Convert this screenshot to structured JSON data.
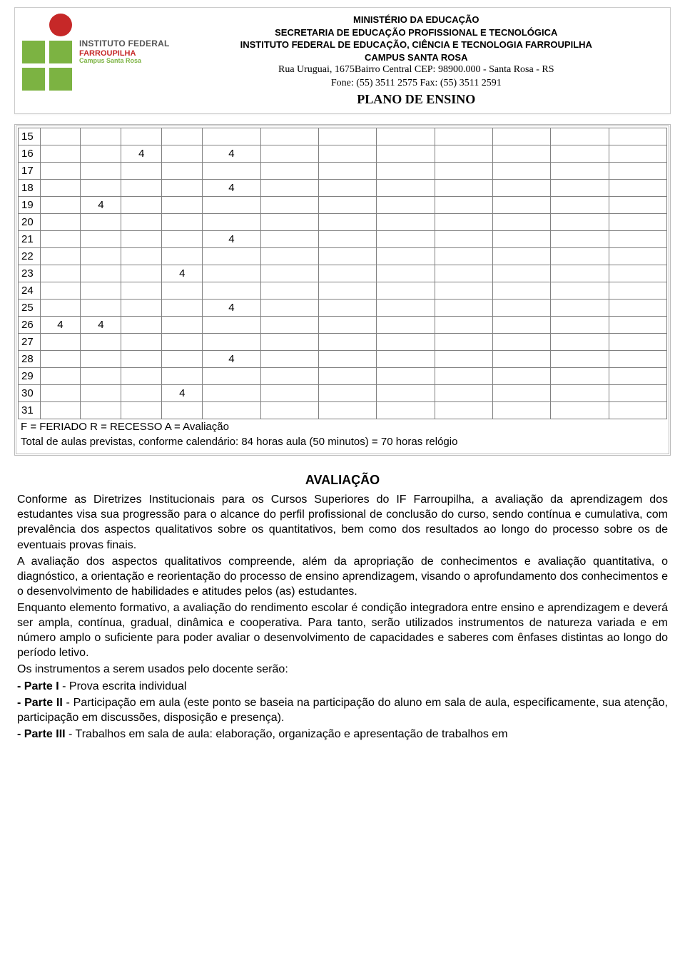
{
  "header": {
    "ministry": "MINISTÉRIO DA EDUCAÇÃO",
    "secretariat": "SECRETARIA DE EDUCAÇÃO PROFISSIONAL E TECNOLÓGICA",
    "institute": "INSTITUTO FEDERAL DE EDUCAÇÃO, CIÊNCIA E TECNOLOGIA FARROUPILHA",
    "campus": "CAMPUS SANTA ROSA",
    "address": "Rua Uruguai, 1675Bairro Central   CEP: 98900.000   - Santa Rosa - RS",
    "contact": "Fone: (55) 3511 2575     Fax: (55) 3511 2591",
    "doc_title": "PLANO DE ENSINO",
    "logo": {
      "line1": "INSTITUTO FEDERAL",
      "line2": "FARROUPILHA",
      "line3": "Campus Santa Rosa",
      "colors": {
        "red": "#c62828",
        "green": "#7cb342"
      }
    }
  },
  "schedule": {
    "type": "table",
    "columns": 13,
    "col_widths": [
      "30px",
      "56px",
      "56px",
      "56px",
      "56px",
      "80px",
      "80px",
      "80px",
      "80px",
      "80px",
      "80px",
      "80px",
      "80px"
    ],
    "rows": [
      {
        "day": "15",
        "cells": [
          "",
          "",
          "",
          "",
          "",
          "",
          "",
          "",
          "",
          "",
          "",
          ""
        ]
      },
      {
        "day": "16",
        "cells": [
          "",
          "",
          "4",
          "",
          "4",
          "",
          "",
          "",
          "",
          "",
          "",
          ""
        ]
      },
      {
        "day": "17",
        "cells": [
          "",
          "",
          "",
          "",
          "",
          "",
          "",
          "",
          "",
          "",
          "",
          ""
        ]
      },
      {
        "day": "18",
        "cells": [
          "",
          "",
          "",
          "",
          "4",
          "",
          "",
          "",
          "",
          "",
          "",
          ""
        ]
      },
      {
        "day": "19",
        "cells": [
          "",
          "4",
          "",
          "",
          "",
          "",
          "",
          "",
          "",
          "",
          "",
          ""
        ]
      },
      {
        "day": "20",
        "cells": [
          "",
          "",
          "",
          "",
          "",
          "",
          "",
          "",
          "",
          "",
          "",
          ""
        ]
      },
      {
        "day": "21",
        "cells": [
          "",
          "",
          "",
          "",
          "4",
          "",
          "",
          "",
          "",
          "",
          "",
          ""
        ]
      },
      {
        "day": "22",
        "cells": [
          "",
          "",
          "",
          "",
          "",
          "",
          "",
          "",
          "",
          "",
          "",
          ""
        ]
      },
      {
        "day": "23",
        "cells": [
          "",
          "",
          "",
          "4",
          "",
          "",
          "",
          "",
          "",
          "",
          "",
          ""
        ]
      },
      {
        "day": "24",
        "cells": [
          "",
          "",
          "",
          "",
          "",
          "",
          "",
          "",
          "",
          "",
          "",
          ""
        ]
      },
      {
        "day": "25",
        "cells": [
          "",
          "",
          "",
          "",
          "4",
          "",
          "",
          "",
          "",
          "",
          "",
          ""
        ]
      },
      {
        "day": "26",
        "cells": [
          "4",
          "4",
          "",
          "",
          "",
          "",
          "",
          "",
          "",
          "",
          "",
          ""
        ]
      },
      {
        "day": "27",
        "cells": [
          "",
          "",
          "",
          "",
          "",
          "",
          "",
          "",
          "",
          "",
          "",
          ""
        ]
      },
      {
        "day": "28",
        "cells": [
          "",
          "",
          "",
          "",
          "4",
          "",
          "",
          "",
          "",
          "",
          "",
          ""
        ]
      },
      {
        "day": "29",
        "cells": [
          "",
          "",
          "",
          "",
          "",
          "",
          "",
          "",
          "",
          "",
          "",
          ""
        ]
      },
      {
        "day": "30",
        "cells": [
          "",
          "",
          "",
          "4",
          "",
          "",
          "",
          "",
          "",
          "",
          "",
          ""
        ]
      },
      {
        "day": "31",
        "cells": [
          "",
          "",
          "",
          "",
          "",
          "",
          "",
          "",
          "",
          "",
          "",
          ""
        ]
      }
    ],
    "legend": "F = FERIADO    R = RECESSO    A = Avaliação",
    "total": "Total de aulas previstas, conforme calendário: 84 horas aula (50 minutos) = 70 horas relógio"
  },
  "evaluation": {
    "title": "AVALIAÇÃO",
    "p1": "Conforme as Diretrizes Institucionais para os Cursos Superiores do IF Farroupilha, a avaliação da aprendizagem dos estudantes visa sua progressão para o alcance do perfil profissional de conclusão do curso, sendo contínua e cumulativa, com prevalência dos aspectos qualitativos sobre os quantitativos, bem como dos resultados ao longo do processo sobre os de eventuais provas finais.",
    "p2": "A avaliação dos aspectos qualitativos compreende, além da apropriação de conhecimentos e avaliação quantitativa, o diagnóstico, a orientação e reorientação do processo de ensino aprendizagem, visando o aprofundamento dos conhecimentos e o desenvolvimento de habilidades e atitudes pelos (as) estudantes.",
    "p3": "Enquanto elemento formativo, a avaliação do rendimento escolar é condição integradora entre ensino e aprendizagem e deverá ser ampla, contínua, gradual, dinâmica e cooperativa. Para tanto, serão utilizados instrumentos de natureza variada e em número amplo o suficiente para poder avaliar o desenvolvimento de capacidades e saberes com ênfases distintas ao longo do período letivo.",
    "p4": "Os instrumentos a serem usados pelo docente serão:",
    "parte1_label": "- Parte I",
    "parte1_text": "  - Prova escrita individual",
    "parte2_label": "- Parte II",
    "parte2_text": "  - Participação em aula (este ponto se baseia na participação do aluno em sala de aula, especificamente, sua atenção, participação em discussões, disposição e presença).",
    "parte3_label": "- Parte III",
    "parte3_text": " - Trabalhos em sala de aula: elaboração, organização e apresentação de trabalhos em"
  }
}
